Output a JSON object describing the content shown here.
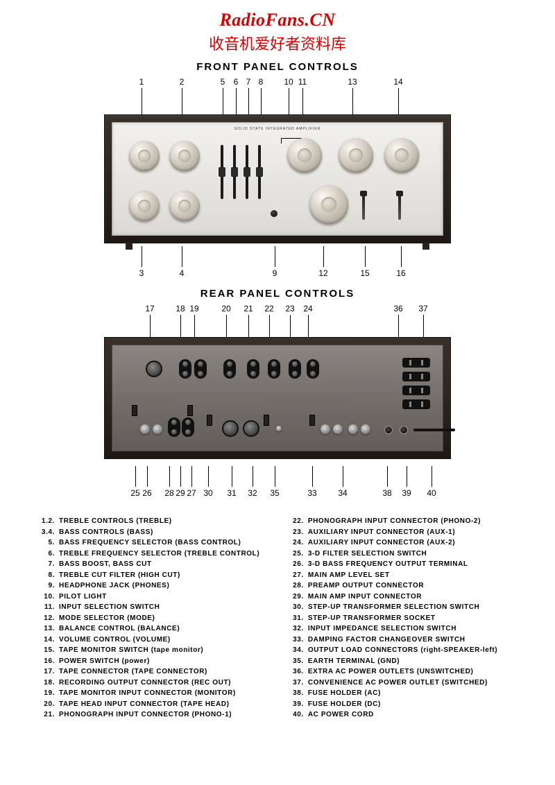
{
  "header": {
    "site_title": "RadioFans.CN",
    "site_subtitle": "收音机爱好者资料库"
  },
  "sections": {
    "front_heading": "FRONT PANEL CONTROLS",
    "rear_heading": "REAR PANEL CONTROLS",
    "amp_label": "SOLID STATE INTEGRATED AMPLIFIER"
  },
  "colors": {
    "accent_red": "#d80000",
    "text": "#000000",
    "background": "#ffffff",
    "wood_dark": "#2a221d",
    "faceplate": "#e8e6e2",
    "rear_plate": "#746f6a"
  },
  "callouts": {
    "front_top": [
      "1",
      "2",
      "5",
      "6",
      "7",
      "8",
      "10",
      "11",
      "13",
      "14"
    ],
    "front_top_x": [
      104,
      162,
      221,
      240,
      258,
      276,
      316,
      336,
      408,
      474
    ],
    "front_bot": [
      "3",
      "4",
      "9",
      "12",
      "15",
      "16"
    ],
    "front_bot_x": [
      104,
      162,
      296,
      366,
      426,
      478
    ],
    "rear_top": [
      "17",
      "18",
      "19",
      "20",
      "21",
      "22",
      "23",
      "24",
      "36",
      "37"
    ],
    "rear_top_x": [
      116,
      160,
      180,
      226,
      258,
      288,
      318,
      344,
      474,
      510
    ],
    "rear_bot": [
      "25",
      "26",
      "28",
      "29",
      "27",
      "30",
      "31",
      "32",
      "35",
      "33",
      "34",
      "38",
      "39",
      "40"
    ],
    "rear_bot_x": [
      95,
      112,
      144,
      160,
      176,
      200,
      234,
      264,
      296,
      350,
      394,
      458,
      486,
      522
    ]
  },
  "legend": {
    "left": [
      {
        "n": "1.2.",
        "t": "TREBLE CONTROLS (TREBLE)"
      },
      {
        "n": "3.4.",
        "t": "BASS CONTROLS (BASS)"
      },
      {
        "n": "5.",
        "t": "BASS FREQUENCY SELECTOR (BASS CONTROL)"
      },
      {
        "n": "6.",
        "t": "TREBLE FREQUENCY SELECTOR (TREBLE CONTROL)"
      },
      {
        "n": "7.",
        "t": "BASS BOOST,  BASS CUT"
      },
      {
        "n": "8.",
        "t": "TREBLE CUT FILTER (HIGH CUT)"
      },
      {
        "n": "9.",
        "t": "HEADPHONE JACK (PHONES)"
      },
      {
        "n": "10.",
        "t": "PILOT LIGHT"
      },
      {
        "n": "11.",
        "t": "INPUT SELECTION SWITCH"
      },
      {
        "n": "12.",
        "t": "MODE SELECTOR (MODE)"
      },
      {
        "n": "13.",
        "t": "BALANCE CONTROL (BALANCE)"
      },
      {
        "n": "14.",
        "t": "VOLUME CONTROL (VOLUME)"
      },
      {
        "n": "15.",
        "t": "TAPE MONITOR SWITCH (tape monitor)"
      },
      {
        "n": "16.",
        "t": "POWER SWITCH (power)"
      },
      {
        "n": "17.",
        "t": "TAPE CONNECTOR (TAPE CONNECTOR)"
      },
      {
        "n": "18.",
        "t": "RECORDING OUTPUT CONNECTOR (REC OUT)"
      },
      {
        "n": "19.",
        "t": "TAPE MONITOR INPUT CONNECTOR (MONITOR)"
      },
      {
        "n": "20.",
        "t": "TAPE HEAD INPUT CONNECTOR (TAPE HEAD)"
      },
      {
        "n": "21.",
        "t": "PHONOGRAPH INPUT CONNECTOR (PHONO-1)"
      }
    ],
    "right": [
      {
        "n": "22.",
        "t": "PHONOGRAPH INPUT CONNECTOR (PHONO-2)"
      },
      {
        "n": "23.",
        "t": "AUXILIARY INPUT CONNECTOR (AUX-1)"
      },
      {
        "n": "24.",
        "t": "AUXILIARY INPUT CONNECTOR (AUX-2)"
      },
      {
        "n": "25.",
        "t": "3-D FILTER SELECTION SWITCH"
      },
      {
        "n": "26.",
        "t": "3-D BASS FREQUENCY OUTPUT TERMINAL"
      },
      {
        "n": "27.",
        "t": "MAIN AMP LEVEL SET"
      },
      {
        "n": "28.",
        "t": "PREAMP OUTPUT CONNECTOR"
      },
      {
        "n": "29.",
        "t": "MAIN AMP INPUT CONNECTOR"
      },
      {
        "n": "30.",
        "t": "STEP-UP TRANSFORMER SELECTION SWITCH"
      },
      {
        "n": "31.",
        "t": "STEP-UP TRANSFORMER SOCKET"
      },
      {
        "n": "32.",
        "t": "INPUT IMPEDANCE SELECTION SWITCH"
      },
      {
        "n": "33.",
        "t": "DAMPING FACTOR CHANGEOVER SWITCH"
      },
      {
        "n": "34.",
        "t": "OUTPUT LOAD CONNECTORS (right-SPEAKER-left)"
      },
      {
        "n": "35.",
        "t": "EARTH TERMINAL (GND)"
      },
      {
        "n": "36.",
        "t": "EXTRA AC POWER OUTLETS (UNSWITCHED)"
      },
      {
        "n": "37.",
        "t": "CONVENIENCE AC POWER OUTLET (SWITCHED)"
      },
      {
        "n": "38.",
        "t": "FUSE HOLDER (AC)"
      },
      {
        "n": "39.",
        "t": "FUSE HOLDER (DC)"
      },
      {
        "n": "40.",
        "t": "AC POWER CORD"
      }
    ]
  }
}
